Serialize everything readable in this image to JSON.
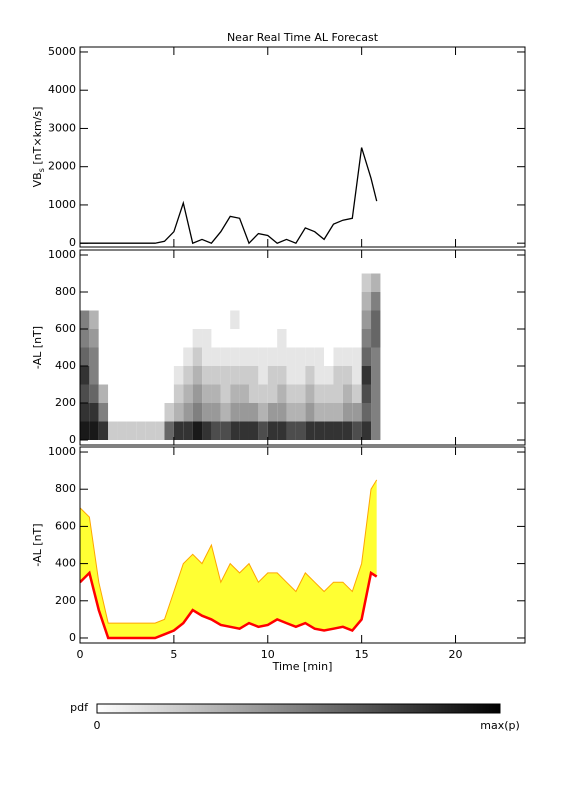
{
  "chart_data": [
    {
      "type": "line",
      "title": "Near Real Time AL Forecast",
      "ylabel": "VB",
      "ylabel_sub": "s",
      "ylabel_rest": " [nT×km/s]",
      "xlim": [
        0,
        23.7
      ],
      "xticks": [
        0,
        5,
        10,
        15,
        20
      ],
      "xtick_labels": false,
      "ylim": [
        -100,
        5130
      ],
      "yticks": [
        0,
        1000,
        2000,
        3000,
        4000,
        5000
      ],
      "x": [
        0,
        0.5,
        1,
        1.5,
        2,
        2.5,
        3,
        3.5,
        4,
        4.5,
        5,
        5.5,
        6,
        6.5,
        7,
        7.5,
        8,
        8.5,
        9,
        9.5,
        10,
        10.5,
        11,
        11.5,
        12,
        12.5,
        13,
        13.5,
        14,
        14.5,
        15,
        15.5,
        15.8
      ],
      "series": [
        {
          "color": "#000000",
          "values": [
            0,
            0,
            0,
            0,
            0,
            0,
            0,
            0,
            0,
            50,
            300,
            1050,
            0,
            100,
            0,
            300,
            700,
            650,
            0,
            250,
            200,
            0,
            100,
            0,
            400,
            300,
            100,
            500,
            600,
            650,
            2500,
            1700,
            1100
          ]
        }
      ]
    },
    {
      "type": "heatmap",
      "ylabel": "-AL [nT]",
      "xlim": [
        0,
        23.7
      ],
      "xticks": [
        0,
        5,
        10,
        15,
        20
      ],
      "xtick_labels": false,
      "ylim": [
        -27,
        1027
      ],
      "yticks": [
        0,
        200,
        400,
        600,
        800,
        1000
      ],
      "x_bins": [
        0,
        0.5,
        1,
        1.5,
        2,
        2.5,
        3,
        3.5,
        4,
        4.5,
        5,
        5.5,
        6,
        6.5,
        7,
        7.5,
        8,
        8.5,
        9,
        9.5,
        10,
        10.5,
        11,
        11.5,
        12,
        12.5,
        13,
        13.5,
        14,
        14.5,
        15,
        15.5,
        16
      ],
      "y_bins": [
        0,
        100,
        200,
        300,
        400,
        500,
        600,
        700,
        800,
        900
      ],
      "values": [
        [
          0.9,
          0.8,
          0.7,
          0.8,
          0.6,
          0.5,
          0.5,
          0,
          0
        ],
        [
          0.9,
          0.8,
          0.6,
          0.5,
          0.5,
          0.4,
          0.3,
          0,
          0
        ],
        [
          0.8,
          0.5,
          0.3,
          0,
          0,
          0,
          0,
          0,
          0
        ],
        [
          0.2,
          0,
          0,
          0,
          0,
          0,
          0,
          0,
          0
        ],
        [
          0.2,
          0,
          0,
          0,
          0,
          0,
          0,
          0,
          0
        ],
        [
          0.2,
          0,
          0,
          0,
          0,
          0,
          0,
          0,
          0
        ],
        [
          0.2,
          0,
          0,
          0,
          0,
          0,
          0,
          0,
          0
        ],
        [
          0.2,
          0,
          0,
          0,
          0,
          0,
          0,
          0,
          0
        ],
        [
          0.2,
          0,
          0,
          0,
          0,
          0,
          0,
          0,
          0
        ],
        [
          0.6,
          0.2,
          0,
          0,
          0,
          0,
          0,
          0,
          0
        ],
        [
          0.8,
          0.3,
          0.2,
          0.1,
          0,
          0,
          0,
          0,
          0
        ],
        [
          0.8,
          0.4,
          0.3,
          0.2,
          0.1,
          0,
          0,
          0,
          0
        ],
        [
          0.9,
          0.5,
          0.4,
          0.3,
          0.2,
          0.1,
          0,
          0,
          0
        ],
        [
          0.8,
          0.4,
          0.3,
          0.2,
          0.1,
          0.1,
          0,
          0,
          0
        ],
        [
          0.7,
          0.4,
          0.3,
          0.2,
          0.1,
          0,
          0,
          0,
          0
        ],
        [
          0.7,
          0.3,
          0.2,
          0.2,
          0.1,
          0,
          0,
          0,
          0
        ],
        [
          0.8,
          0.4,
          0.3,
          0.2,
          0.1,
          0,
          0.1,
          0,
          0
        ],
        [
          0.8,
          0.4,
          0.3,
          0.2,
          0.1,
          0,
          0,
          0,
          0
        ],
        [
          0.8,
          0.4,
          0.2,
          0.2,
          0.1,
          0,
          0,
          0,
          0
        ],
        [
          0.7,
          0.3,
          0.2,
          0.1,
          0.1,
          0,
          0,
          0,
          0
        ],
        [
          0.8,
          0.4,
          0.2,
          0.2,
          0.1,
          0,
          0,
          0,
          0
        ],
        [
          0.8,
          0.4,
          0.3,
          0.2,
          0.1,
          0.1,
          0,
          0,
          0
        ],
        [
          0.7,
          0.3,
          0.2,
          0.1,
          0.1,
          0,
          0,
          0,
          0
        ],
        [
          0.7,
          0.3,
          0.2,
          0.1,
          0.1,
          0,
          0,
          0,
          0
        ],
        [
          0.8,
          0.4,
          0.3,
          0.2,
          0.1,
          0,
          0,
          0,
          0
        ],
        [
          0.8,
          0.3,
          0.2,
          0.1,
          0.1,
          0,
          0,
          0,
          0
        ],
        [
          0.8,
          0.3,
          0.2,
          0.1,
          0,
          0,
          0,
          0,
          0
        ],
        [
          0.8,
          0.3,
          0.2,
          0.2,
          0.1,
          0,
          0,
          0,
          0
        ],
        [
          0.8,
          0.4,
          0.3,
          0.2,
          0.1,
          0,
          0,
          0,
          0
        ],
        [
          0.7,
          0.4,
          0.2,
          0.1,
          0.1,
          0,
          0,
          0,
          0
        ],
        [
          0.8,
          0.6,
          0.7,
          0.8,
          0.6,
          0.5,
          0.4,
          0.3,
          0.2
        ],
        [
          0.5,
          0.5,
          0.5,
          0.5,
          0.5,
          0.6,
          0.6,
          0.5,
          0.3
        ]
      ],
      "colorbar": {
        "label": "pdf",
        "min_label": "0",
        "max_label": "max(p)"
      }
    },
    {
      "type": "band",
      "ylabel": "-AL [nT]",
      "xlabel": "Time [min]",
      "xlim": [
        0,
        23.7
      ],
      "xticks": [
        0,
        5,
        10,
        15,
        20
      ],
      "xtick_labels": true,
      "ylim": [
        -27,
        1027
      ],
      "yticks": [
        0,
        200,
        400,
        600,
        800,
        1000
      ],
      "band_color": "#ffff33",
      "x": [
        0,
        0.5,
        1,
        1.5,
        2,
        2.5,
        3,
        3.5,
        4,
        4.5,
        5,
        5.5,
        6,
        6.5,
        7,
        7.5,
        8,
        8.5,
        9,
        9.5,
        10,
        10.5,
        11,
        11.5,
        12,
        12.5,
        13,
        13.5,
        14,
        14.5,
        15,
        15.5,
        15.8
      ],
      "series": [
        {
          "color": "#ffa500",
          "values": [
            700,
            650,
            300,
            80,
            80,
            80,
            80,
            80,
            80,
            100,
            250,
            400,
            450,
            400,
            500,
            300,
            400,
            350,
            400,
            300,
            350,
            350,
            300,
            250,
            350,
            300,
            250,
            300,
            300,
            250,
            400,
            800,
            850
          ]
        },
        {
          "color": "#ff0000",
          "values": [
            300,
            350,
            150,
            0,
            0,
            0,
            0,
            0,
            0,
            20,
            40,
            80,
            150,
            120,
            100,
            70,
            60,
            50,
            80,
            60,
            70,
            100,
            80,
            60,
            80,
            50,
            40,
            50,
            60,
            40,
            100,
            350,
            330
          ]
        }
      ]
    }
  ]
}
